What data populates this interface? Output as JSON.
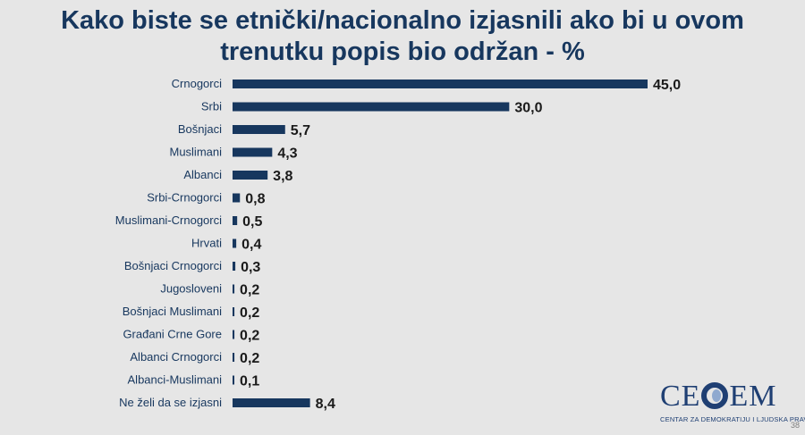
{
  "title_line1": "Kako biste se etnički/nacionalno izjasnili ako bi u ovom",
  "title_line2": "trenutku popis bio održan - %",
  "chart_data": {
    "type": "bar",
    "orientation": "horizontal",
    "title": "Kako biste se etnički/nacionalno izjasnili ako bi u ovom trenutku popis bio održan - %",
    "categories": [
      "Crnogorci",
      "Srbi",
      "Bošnjaci",
      "Muslimani",
      "Albanci",
      "Srbi-Crnogorci",
      "Muslimani-Crnogorci",
      "Hrvati",
      "Bošnjaci Crnogorci",
      "Jugosloveni",
      "Bošnjaci Muslimani",
      "Građani Crne Gore",
      "Albanci Crnogorci",
      "Albanci-Muslimani",
      "Ne želi da se izjasni"
    ],
    "values": [
      45.0,
      30.0,
      5.7,
      4.3,
      3.8,
      0.8,
      0.5,
      0.4,
      0.3,
      0.2,
      0.2,
      0.2,
      0.2,
      0.1,
      8.4
    ],
    "value_labels": [
      "45,0",
      "30,0",
      "5,7",
      "4,3",
      "3,8",
      "0,8",
      "0,5",
      "0,4",
      "0,3",
      "0,2",
      "0,2",
      "0,2",
      "0,2",
      "0,1",
      "8,4"
    ],
    "xlabel": "",
    "ylabel": "",
    "xlim": [
      0,
      45
    ],
    "grid": false,
    "bar_color": "#17375e"
  },
  "logo": {
    "text_left": "CE",
    "text_right": "EM",
    "subtitle": "CENTAR ZA DEMOKRATIJU I LJUDSKA PRAVA"
  },
  "page_number": "38"
}
